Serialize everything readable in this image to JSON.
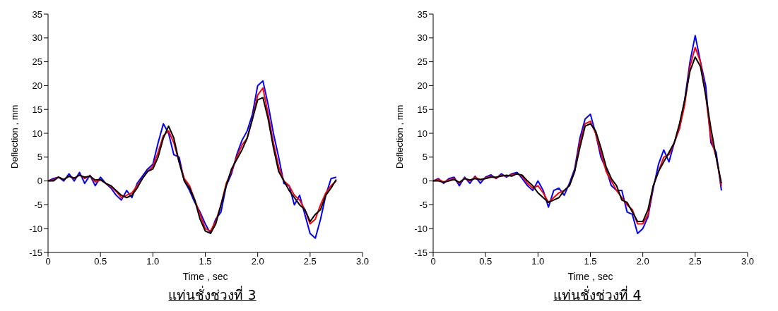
{
  "chart_data": [
    {
      "type": "line",
      "title": "แท่นชั่งช่วงที่ 3",
      "xlabel": "Time , sec",
      "ylabel": "Deflection , mm",
      "x": [
        0,
        0.05,
        0.1,
        0.15,
        0.2,
        0.25,
        0.3,
        0.35,
        0.4,
        0.45,
        0.5,
        0.55,
        0.6,
        0.65,
        0.7,
        0.75,
        0.8,
        0.85,
        0.9,
        0.95,
        1,
        1.05,
        1.1,
        1.15,
        1.2,
        1.25,
        1.3,
        1.35,
        1.4,
        1.45,
        1.5,
        1.55,
        1.6,
        1.65,
        1.7,
        1.75,
        1.8,
        1.85,
        1.9,
        1.95,
        2,
        2.05,
        2.1,
        2.15,
        2.2,
        2.25,
        2.3,
        2.35,
        2.4,
        2.45,
        2.5,
        2.55,
        2.6,
        2.65,
        2.7,
        2.75
      ],
      "xlim": [
        0,
        3
      ],
      "xticks": [
        0,
        {
          "value": 0.5,
          "label": "0.5"
        },
        {
          "value": 1,
          "label": "1.0"
        },
        {
          "value": 1.5,
          "label": "1.5"
        },
        {
          "value": 2,
          "label": "2.0"
        },
        {
          "value": 2.5,
          "label": "2.5"
        },
        {
          "value": 3,
          "label": "3.0"
        }
      ],
      "ylim": [
        -15,
        35
      ],
      "yticks": [
        -15,
        -10,
        -5,
        0,
        5,
        10,
        15,
        20,
        25,
        30,
        35
      ],
      "grid": false,
      "legend": false,
      "line_style": "solid",
      "marker": "none",
      "series": [
        {
          "color": "#0000ff",
          "values": [
            0,
            0.5,
            0.8,
            0,
            1.5,
            0,
            1.8,
            -0.5,
            1.2,
            -1,
            0.8,
            -0.5,
            -1.5,
            -3,
            -4,
            -2,
            -3.5,
            -0.5,
            1,
            2.5,
            3.5,
            8,
            12,
            10,
            5.5,
            5,
            0,
            -2,
            -4.5,
            -6.5,
            -9,
            -11,
            -8,
            -6.5,
            -1,
            1.5,
            5.5,
            8.5,
            10.5,
            14,
            20,
            21,
            16,
            10,
            5,
            -0.5,
            -1,
            -5,
            -3,
            -7,
            -11,
            -12,
            -8,
            -3,
            0.5,
            0.8
          ]
        },
        {
          "color": "#ff0000",
          "values": [
            0,
            0.2,
            0.8,
            0.3,
            1,
            0.5,
            1.3,
            0.5,
            1.1,
            -0.2,
            0.2,
            -0.5,
            -1.2,
            -2.2,
            -3.5,
            -3,
            -2.5,
            -1,
            0.5,
            2,
            3,
            6,
            9.5,
            10.5,
            8,
            4,
            0.5,
            -1,
            -4,
            -7,
            -10,
            -10.5,
            -8.5,
            -5,
            -0.5,
            2,
            5,
            7.5,
            9,
            13,
            18,
            19.5,
            14,
            8,
            3,
            0,
            -1,
            -3,
            -4,
            -6,
            -9,
            -8,
            -5,
            -2.5,
            -1,
            0
          ]
        },
        {
          "color": "#000000",
          "values": [
            0,
            0,
            0.8,
            0.3,
            1,
            0.6,
            1.2,
            0.8,
            1,
            0.2,
            0.3,
            -0.5,
            -1,
            -2,
            -3,
            -3.5,
            -3,
            -1.5,
            0.5,
            2,
            2.5,
            5,
            9,
            11.5,
            9,
            4,
            0,
            -1.5,
            -4,
            -8,
            -10.5,
            -11,
            -9,
            -5,
            -1,
            2.5,
            4.5,
            6.5,
            9,
            13,
            17,
            17.5,
            13,
            7,
            2,
            0,
            -2,
            -3.5,
            -5,
            -6,
            -8.5,
            -7,
            -6,
            -3,
            -1.5,
            0.3
          ]
        }
      ]
    },
    {
      "type": "line",
      "title": "แท่นชั่งช่วงที่ 4",
      "xlabel": "Time , sec",
      "ylabel": "Deflection , mm",
      "x": [
        0,
        0.05,
        0.1,
        0.15,
        0.2,
        0.25,
        0.3,
        0.35,
        0.4,
        0.45,
        0.5,
        0.55,
        0.6,
        0.65,
        0.7,
        0.75,
        0.8,
        0.85,
        0.9,
        0.95,
        1,
        1.05,
        1.1,
        1.15,
        1.2,
        1.25,
        1.3,
        1.35,
        1.4,
        1.45,
        1.5,
        1.55,
        1.6,
        1.65,
        1.7,
        1.75,
        1.8,
        1.85,
        1.9,
        1.95,
        2,
        2.05,
        2.1,
        2.15,
        2.2,
        2.25,
        2.3,
        2.35,
        2.4,
        2.45,
        2.5,
        2.55,
        2.6,
        2.65,
        2.7,
        2.75
      ],
      "xlim": [
        0,
        3
      ],
      "xticks": [
        0,
        {
          "value": 0.5,
          "label": "0.5"
        },
        {
          "value": 1,
          "label": "1.0"
        },
        {
          "value": 1.5,
          "label": "1.5"
        },
        {
          "value": 2,
          "label": "2.0"
        },
        {
          "value": 2.5,
          "label": "2.5"
        },
        {
          "value": 3,
          "label": "3.0"
        }
      ],
      "ylim": [
        -15,
        35
      ],
      "yticks": [
        -15,
        -10,
        -5,
        0,
        5,
        10,
        15,
        20,
        25,
        30,
        35
      ],
      "grid": false,
      "legend": false,
      "line_style": "solid",
      "marker": "none",
      "series": [
        {
          "color": "#0000ff",
          "values": [
            0,
            0.5,
            -0.5,
            0.5,
            0.8,
            -1,
            0.8,
            -0.5,
            1,
            -0.5,
            0.8,
            1.3,
            0.5,
            1.5,
            0.8,
            1.5,
            1.8,
            0.5,
            -1,
            -2,
            0,
            -2,
            -5.5,
            -2,
            -1.5,
            -3,
            -0.5,
            2.5,
            9,
            13,
            14,
            10,
            5,
            2.5,
            -1,
            -2,
            -2,
            -6.5,
            -7,
            -11,
            -10,
            -7.5,
            -1.5,
            3.5,
            6.5,
            4,
            8,
            11,
            17,
            25,
            30.5,
            25,
            20,
            8,
            6,
            -2
          ]
        },
        {
          "color": "#ff0000",
          "values": [
            0,
            0.3,
            -0.2,
            0.2,
            0.5,
            -0.5,
            0.6,
            0,
            0.8,
            0.2,
            0.6,
            1,
            0.6,
            1.2,
            1,
            1.3,
            1.5,
            1,
            -0.5,
            -1.5,
            -1,
            -2.5,
            -4.5,
            -3.5,
            -2.5,
            -2,
            -1,
            2,
            8,
            12,
            12.5,
            10,
            6,
            2,
            0,
            -2,
            -3.5,
            -5,
            -6,
            -9,
            -9,
            -7,
            -1,
            2,
            5,
            5.5,
            8,
            11,
            16,
            24,
            28,
            25,
            18,
            9,
            5,
            -1
          ]
        },
        {
          "color": "#000000",
          "values": [
            0,
            0,
            -0.3,
            0,
            0.3,
            -0.3,
            0.5,
            0.2,
            0.5,
            0.3,
            0.5,
            0.8,
            0.8,
            1,
            1.2,
            1,
            1.5,
            1.2,
            0,
            -1,
            -2.5,
            -3.5,
            -4.5,
            -4,
            -3.5,
            -2,
            -1,
            2,
            7,
            11.5,
            12,
            10.5,
            7,
            3,
            0.5,
            -1,
            -4,
            -4.5,
            -6.5,
            -8.5,
            -8.5,
            -6,
            -1,
            2,
            4,
            6,
            8,
            12,
            17,
            23,
            26,
            24,
            18,
            11,
            5,
            -0.5
          ]
        }
      ]
    }
  ]
}
